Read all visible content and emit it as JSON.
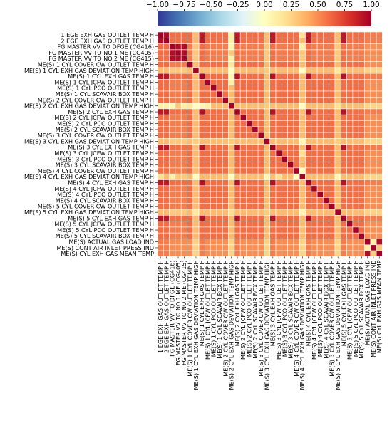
{
  "chart_data": {
    "type": "heatmap",
    "title": "",
    "xlabel": "",
    "ylabel": "",
    "variables": [
      "1 EGE EXH GAS OUTLET TEMP H",
      "2 EGE EXH GAS OUTLET TEMP H",
      "FG MASTER VV TO DFGE (CG416)",
      "FG MASTER VV TO NO.1 ME (CG405)",
      "FG MASTER VV TO NO.2 ME (CG415)",
      "ME(S) 1 CYL COVER CW OUTLET TEMP H",
      "ME(S) 1 CYL EXH GAS DEVIATION TEMP HIGH",
      "ME(S) 1 CYL EXH GAS TEMP H",
      "ME(S) 1 CYL JCFW OUTLET TEMP H",
      "ME(S) 1 CYL PCO OUTLET TEMP H",
      "ME(S) 1 CYL SCAVAIR BOX TEMP H",
      "ME(S) 2 CYL COVER CW OUTLET TEMP H",
      "ME(S) 2 CYL EXH GAS DEVIATION TEMP HIGH",
      "ME(S) 2 CYL EXH GAS TEMP H",
      "ME(S) 2 CYL JCFW OUTLET TEMP H",
      "ME(S) 2 CYL PCO OUTLET TEMP H",
      "ME(S) 2 CYL SCAVAIR BOX TEMP H",
      "ME(S) 3 CYL COVER CW OUTLET TEMP H",
      "ME(S) 3 CYL EXH GAS DEVIATION TEMP HIGH",
      "ME(S) 3 CYL EXH GAS TEMP H",
      "ME(S) 3 CYL JCFW OUTLET TEMP H",
      "ME(S) 3 CYL PCO OUTLET TEMP H",
      "ME(S) 3 CYL SCAVAIR BOX TEMP H",
      "ME(S) 4 CYL COVER CW OUTLET TEMP H",
      "ME(S) 4 CYL EXH GAS DEVIATION TEMP HIGH",
      "ME(S) 4 CYL EXH GAS TEMP H",
      "ME(S) 4 CYL JCFW OUTLET TEMP H",
      "ME(S) 4 CYL PCO OUTLET TEMP H",
      "ME(S) 4 CYL SCAVAIR BOX TEMP H",
      "ME(S) 5 CYL COVER CW OUTLET TEMP H",
      "ME(S) 5 CYL EXH GAS DEVIATION TEMP HIGH",
      "ME(S) 5 CYL EXH GAS TEMP H",
      "ME(S) 5 CYL JCFW OUTLET TEMP H",
      "ME(S) 5 CYL PCO OUTLET TEMP H",
      "ME(S) 5 CYL SCAVAIR BOX TEMP H",
      "ME(S) ACTUAL GAS LOAD IND",
      "ME(S) CONT AIR INLET PRESS IND",
      "ME(S) CYL EXH GAS MEAN TEMP"
    ],
    "default_value": 0.55,
    "groups": {
      "egeA": [
        0,
        1
      ],
      "fgB": [
        2,
        3,
        4
      ],
      "exhC": [
        7,
        13,
        19,
        25,
        31
      ],
      "devD": [
        6,
        12,
        18,
        24,
        30
      ],
      "cool": [
        5,
        8,
        9,
        10,
        11,
        14,
        15,
        16,
        17,
        20,
        21,
        22,
        23,
        26,
        27,
        28,
        29,
        32,
        33,
        34
      ],
      "other": [
        35,
        36,
        37
      ]
    },
    "group_values": {
      "egeA-egeA": 0.95,
      "egeA-fgB": 0.6,
      "egeA-exhC": 0.9,
      "egeA-devD": 0.35,
      "egeA-cool": 0.6,
      "egeA-other": 0.55,
      "fgB-fgB": 0.95,
      "fgB-exhC": 0.6,
      "fgB-devD": 0.3,
      "fgB-cool": 0.55,
      "fgB-other": 0.5,
      "exhC-exhC": 0.93,
      "exhC-devD": 0.35,
      "exhC-cool": 0.6,
      "exhC-other": 0.55,
      "devD-devD": 0.28,
      "devD-cool": 0.35,
      "devD-other": 0.25,
      "cool-cool": 0.6,
      "cool-other": 0.5,
      "other-other": 0.3
    },
    "special_cells": [
      {
        "row": 12,
        "col": 0,
        "value": 0.1
      },
      {
        "row": 12,
        "col": 1,
        "value": 0.1
      },
      {
        "row": 12,
        "col": 2,
        "value": 0.05
      },
      {
        "row": 12,
        "col": 4,
        "value": 0.1
      },
      {
        "row": 12,
        "col": 5,
        "value": 0.15
      },
      {
        "row": 12,
        "col": 6,
        "value": 0.0
      },
      {
        "row": 12,
        "col": 7,
        "value": 0.05
      },
      {
        "row": 12,
        "col": 8,
        "value": 0.1
      },
      {
        "row": 24,
        "col": 0,
        "value": 0.2
      },
      {
        "row": 24,
        "col": 2,
        "value": 0.1
      },
      {
        "row": 24,
        "col": 6,
        "value": 0.0
      },
      {
        "row": 24,
        "col": 12,
        "value": 0.0
      },
      {
        "row": 24,
        "col": 18,
        "value": 0.05
      },
      {
        "row": 24,
        "col": 20,
        "value": 0.2
      },
      {
        "row": 24,
        "col": 23,
        "value": 0.0
      },
      {
        "row": 30,
        "col": 6,
        "value": 0.15
      },
      {
        "row": 30,
        "col": 12,
        "value": 0.2
      },
      {
        "row": 30,
        "col": 24,
        "value": 0.05
      },
      {
        "row": 37,
        "col": 35,
        "value": 0.95
      },
      {
        "row": 35,
        "col": 37,
        "value": 0.95
      },
      {
        "row": 36,
        "col": 35,
        "value": 0.1
      },
      {
        "row": 35,
        "col": 36,
        "value": 0.1
      }
    ],
    "colorbar": {
      "vmin": -1.0,
      "vmax": 1.0,
      "ticks": [
        "−1.00",
        "−0.75",
        "−0.50",
        "−0.25",
        "0.00",
        "0.25",
        "0.50",
        "0.75",
        "1.00"
      ],
      "colormap": "RdYlBu_r",
      "stops": [
        "#313695",
        "#4575b4",
        "#74add1",
        "#abd9e9",
        "#e0f3f8",
        "#ffffbf",
        "#fee090",
        "#fdae61",
        "#f46d43",
        "#d73027",
        "#a50026"
      ]
    },
    "diagonal": 1.0
  }
}
